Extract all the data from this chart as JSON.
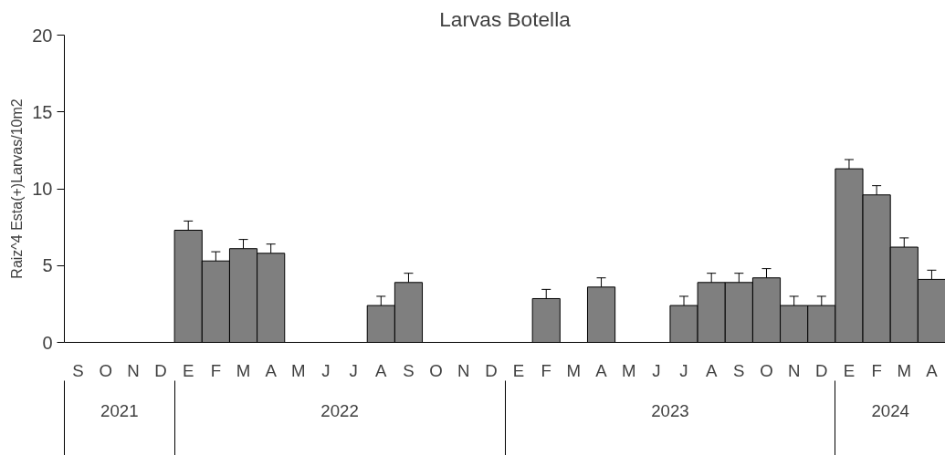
{
  "chart_data": {
    "type": "bar",
    "title": "Larvas Botella",
    "ylabel": "Raiz^4 Esta(+)Larvas/10m2",
    "categories": [
      "S",
      "O",
      "N",
      "D",
      "E",
      "F",
      "M",
      "A",
      "M",
      "J",
      "J",
      "A",
      "S",
      "O",
      "N",
      "D",
      "E",
      "F",
      "M",
      "A",
      "M",
      "J",
      "J",
      "A",
      "S",
      "O",
      "N",
      "D",
      "E",
      "F",
      "M",
      "A"
    ],
    "values": [
      null,
      null,
      null,
      null,
      7.3,
      5.3,
      6.1,
      5.8,
      null,
      null,
      null,
      2.4,
      3.9,
      null,
      null,
      null,
      null,
      2.85,
      null,
      3.6,
      null,
      null,
      2.4,
      3.9,
      3.9,
      4.2,
      2.4,
      2.4,
      11.3,
      9.6,
      6.2,
      4.1
    ],
    "errors": [
      null,
      null,
      null,
      null,
      0.6,
      0.6,
      0.6,
      0.6,
      null,
      null,
      null,
      0.6,
      0.6,
      null,
      null,
      null,
      null,
      0.6,
      null,
      0.6,
      null,
      null,
      0.6,
      0.6,
      0.6,
      0.6,
      0.6,
      0.6,
      0.6,
      0.6,
      0.6,
      0.6
    ],
    "color": "#7f7f7f",
    "ylim": [
      0,
      20
    ],
    "yticks": [
      0,
      5,
      10,
      15,
      20
    ],
    "annotations": [
      "2021",
      "2022",
      "2023",
      "2024"
    ]
  }
}
